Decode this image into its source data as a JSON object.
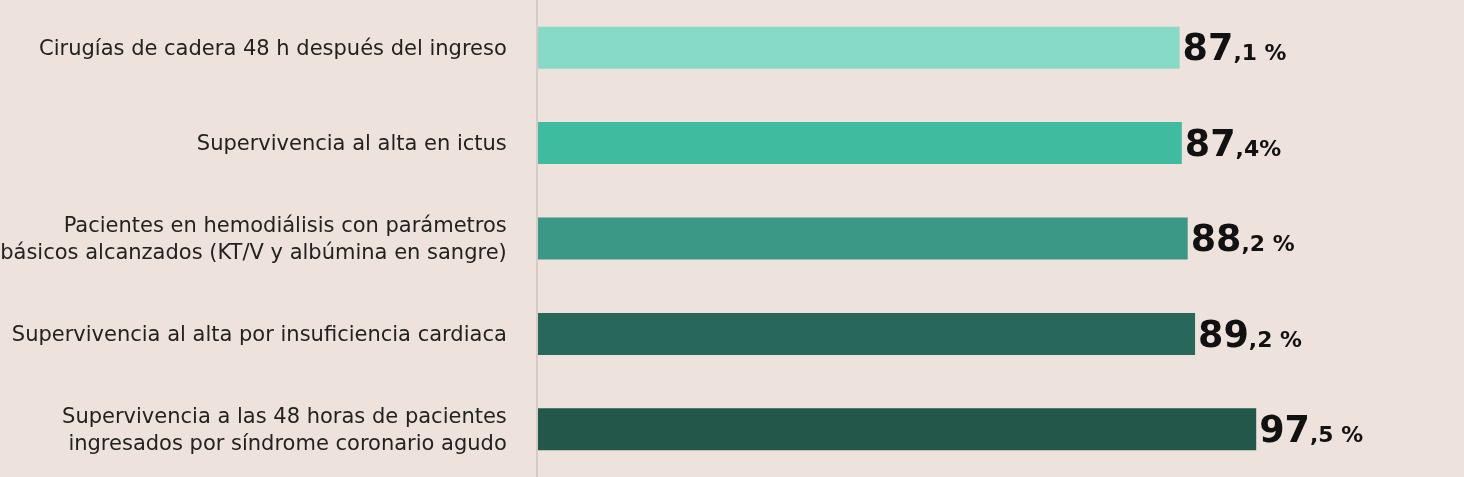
{
  "chart_data": {
    "type": "bar",
    "orientation": "horizontal",
    "categories": [
      "Cirugías de cadera 48 h después del ingreso",
      "Supervivencia al alta en ictus",
      "Pacientes en hemodiálisis con parámetros\nbásicos alcanzados (KT/V y albúmina en sangre)",
      "Supervivencia al alta por insuficiencia cardiaca",
      "Supervivencia a las 48 horas de pacientes\ningresados por síndrome coronario agudo"
    ],
    "values": [
      87.1,
      87.4,
      88.2,
      89.2,
      97.5
    ],
    "colors": [
      "#87d9c8",
      "#3fbc9f",
      "#3b9886",
      "#27685a",
      "#22574a"
    ],
    "value_labels": [
      "87,1 %",
      "87,4%",
      "88,2 %",
      "89,2 %",
      "97,5 %"
    ],
    "tick_labels": "y",
    "grid": false,
    "legend": false
  }
}
